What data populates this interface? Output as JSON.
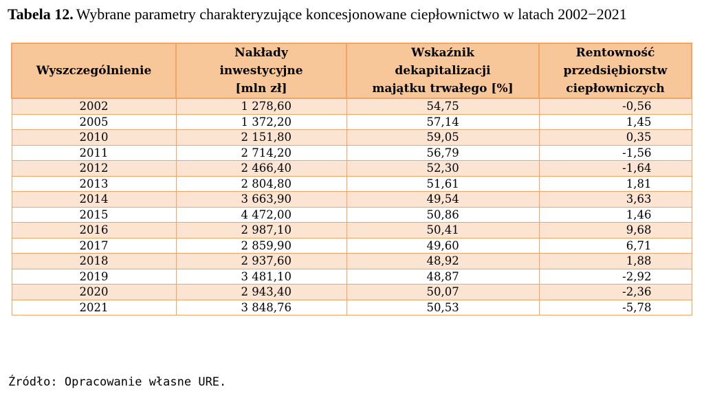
{
  "caption": {
    "label": "Tabela 12.",
    "text": "Wybrane parametry charakteryzujące koncesjonowane ciepłownictwo w latach 2002−2021"
  },
  "table": {
    "headers": [
      [
        "Wyszczególnienie"
      ],
      [
        "Nakłady",
        "inwestycyjne",
        "[mln zł]"
      ],
      [
        "Wskaźnik",
        "dekapitalizacji",
        "majątku trwałego [%]"
      ],
      [
        "Rentowność",
        "przedsiębiorstw",
        "ciepłowniczych"
      ]
    ],
    "rows": [
      [
        "2002",
        "1 278,60",
        "54,75",
        "-0,56"
      ],
      [
        "2005",
        "1 372,20",
        "57,14",
        "1,45"
      ],
      [
        "2010",
        "2 151,80",
        "59,05",
        "0,35"
      ],
      [
        "2011",
        "2 714,20",
        "56,79",
        "-1,56"
      ],
      [
        "2012",
        "2 466,40",
        "52,30",
        "-1,64"
      ],
      [
        "2013",
        "2 804,80",
        "51,61",
        "1,81"
      ],
      [
        "2014",
        "3 663,90",
        "49,54",
        "3,63"
      ],
      [
        "2015",
        "4 472,00",
        "50,86",
        "1,46"
      ],
      [
        "2016",
        "2 987,10",
        "50,41",
        "9,68"
      ],
      [
        "2017",
        "2 859,90",
        "49,60",
        "6,71"
      ],
      [
        "2018",
        "2 937,60",
        "48,92",
        "1,88"
      ],
      [
        "2019",
        "3 481,10",
        "48,87",
        "-2,92"
      ],
      [
        "2020",
        "2 943,40",
        "50,07",
        "-2,36"
      ],
      [
        "2021",
        "3 848,76",
        "50,53",
        "-5,78"
      ]
    ]
  },
  "source": "Źródło: Opracowanie własne URE.",
  "colors": {
    "header_fill": "#f8c799",
    "border": "#f4a460",
    "band_fill": "#fce4d3"
  }
}
